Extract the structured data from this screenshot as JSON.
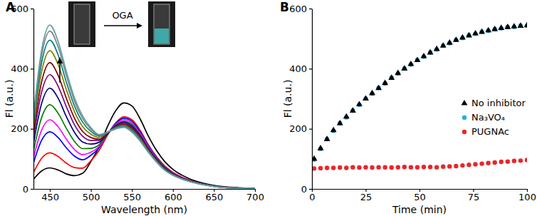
{
  "chart_data": [
    {
      "type": "line",
      "title": "A",
      "xlabel": "Wavelength (nm)",
      "ylabel": "Fl (a.u.)",
      "annotations": [
        "OGA"
      ],
      "x": [
        430,
        440,
        450,
        460,
        470,
        480,
        490,
        500,
        510,
        520,
        530,
        540,
        550,
        560,
        570,
        580,
        590,
        600,
        620,
        640,
        660,
        680,
        700
      ],
      "xlim": [
        430,
        700
      ],
      "xticks": [
        450,
        500,
        550,
        600,
        650,
        700
      ],
      "ylim": [
        0,
        600
      ],
      "yticks": [
        0,
        200,
        400,
        600
      ],
      "grid": false,
      "line_style": "solid",
      "series": [
        {
          "color": "#000000",
          "values": [
            32,
            60,
            70,
            63,
            50,
            44,
            52,
            91,
            140,
            206,
            259,
            286,
            276,
            233,
            176,
            128,
            91,
            65,
            34,
            17,
            8,
            4,
            1
          ]
        },
        {
          "color": "#ff0000",
          "values": [
            54,
            102,
            120,
            108,
            86,
            71,
            69,
            94,
            128,
            178,
            219,
            240,
            230,
            195,
            147,
            107,
            76,
            55,
            29,
            14,
            7,
            3,
            1
          ]
        },
        {
          "color": "#0000ff",
          "values": [
            86,
            162,
            190,
            171,
            137,
            109,
            97,
            112,
            137,
            181,
            217,
            235,
            225,
            190,
            144,
            105,
            74,
            53,
            28,
            14,
            7,
            3,
            1
          ]
        },
        {
          "color": "#ff00ff",
          "values": [
            104,
            196,
            230,
            207,
            166,
            131,
            114,
            122,
            141,
            181,
            214,
            230,
            219,
            185,
            141,
            102,
            72,
            52,
            28,
            14,
            6,
            3,
            1
          ]
        },
        {
          "color": "#008000",
          "values": [
            126,
            238,
            280,
            252,
            202,
            158,
            134,
            135,
            147,
            181,
            211,
            225,
            214,
            180,
            137,
            100,
            71,
            51,
            27,
            14,
            6,
            3,
            1
          ]
        },
        {
          "color": "#000080",
          "values": [
            151,
            285,
            335,
            302,
            241,
            188,
            156,
            149,
            155,
            183,
            209,
            222,
            209,
            177,
            134,
            98,
            69,
            50,
            27,
            13,
            6,
            3,
            1
          ]
        },
        {
          "color": "#800080",
          "values": [
            171,
            323,
            380,
            342,
            274,
            213,
            175,
            161,
            161,
            185,
            207,
            218,
            205,
            173,
            132,
            96,
            68,
            49,
            26,
            13,
            6,
            3,
            1
          ]
        },
        {
          "color": "#800000",
          "values": [
            189,
            357,
            420,
            378,
            302,
            235,
            191,
            171,
            165,
            186,
            205,
            215,
            201,
            169,
            129,
            94,
            66,
            48,
            26,
            13,
            5,
            3,
            1
          ]
        },
        {
          "color": "#808000",
          "values": [
            207,
            391,
            460,
            414,
            331,
            257,
            207,
            182,
            171,
            187,
            204,
            212,
            197,
            167,
            127,
            93,
            65,
            47,
            26,
            13,
            5,
            3,
            1
          ]
        },
        {
          "color": "#008080",
          "values": [
            223,
            421,
            495,
            446,
            356,
            276,
            222,
            191,
            176,
            188,
            203,
            210,
            195,
            164,
            125,
            91,
            64,
            47,
            25,
            13,
            5,
            3,
            1
          ]
        },
        {
          "color": "#7f7f7f",
          "values": [
            236,
            446,
            525,
            473,
            378,
            292,
            234,
            199,
            179,
            189,
            201,
            207,
            192,
            162,
            123,
            90,
            63,
            46,
            25,
            13,
            5,
            2,
            1
          ]
        },
        {
          "color": "#5b9ea6",
          "values": [
            245,
            463,
            545,
            491,
            392,
            303,
            242,
            204,
            181,
            189,
            199,
            205,
            189,
            159,
            122,
            89,
            62,
            45,
            25,
            12,
            5,
            2,
            1
          ]
        }
      ]
    },
    {
      "type": "scatter",
      "title": "B",
      "xlabel": "Time (min)",
      "ylabel": "Fl (a.u.)",
      "x": [
        1,
        4,
        7,
        10,
        13,
        16,
        19,
        22,
        25,
        28,
        31,
        34,
        37,
        40,
        43,
        46,
        49,
        52,
        55,
        58,
        61,
        64,
        67,
        70,
        73,
        76,
        79,
        82,
        85,
        88,
        91,
        94,
        97,
        100
      ],
      "xlim": [
        0,
        100
      ],
      "xticks": [
        0,
        25,
        50,
        75,
        100
      ],
      "ylim": [
        0,
        600
      ],
      "yticks": [
        0,
        200,
        400,
        600
      ],
      "grid": false,
      "legend": "right",
      "series": [
        {
          "name": "No inhibitor",
          "color": "#000000",
          "marker": "triangle",
          "values": [
            100,
            135,
            165,
            195,
            218,
            240,
            260,
            281,
            300,
            318,
            335,
            352,
            369,
            385,
            400,
            415,
            428,
            441,
            453,
            465,
            476,
            486,
            495,
            503,
            510,
            517,
            522,
            527,
            531,
            535,
            538,
            540,
            542,
            544
          ]
        },
        {
          "name": "Na₃VO₄",
          "color": "#29abe2",
          "marker": "circle",
          "values": [
            98,
            133,
            166,
            193,
            219,
            238,
            261,
            280,
            301,
            317,
            336,
            351,
            370,
            384,
            401,
            414,
            429,
            440,
            454,
            464,
            477,
            485,
            496,
            502,
            511,
            516,
            523,
            526,
            532,
            534,
            539,
            539,
            543,
            543
          ]
        },
        {
          "name": "PUGNAc",
          "color": "#e8262a",
          "marker": "circle",
          "values": [
            68,
            69,
            70,
            70,
            71,
            70,
            72,
            71,
            72,
            71,
            72,
            72,
            71,
            72,
            73,
            72,
            72,
            73,
            73,
            72,
            74,
            75,
            76,
            78,
            80,
            82,
            84,
            86,
            88,
            90,
            91,
            93,
            94,
            96
          ]
        }
      ]
    }
  ]
}
